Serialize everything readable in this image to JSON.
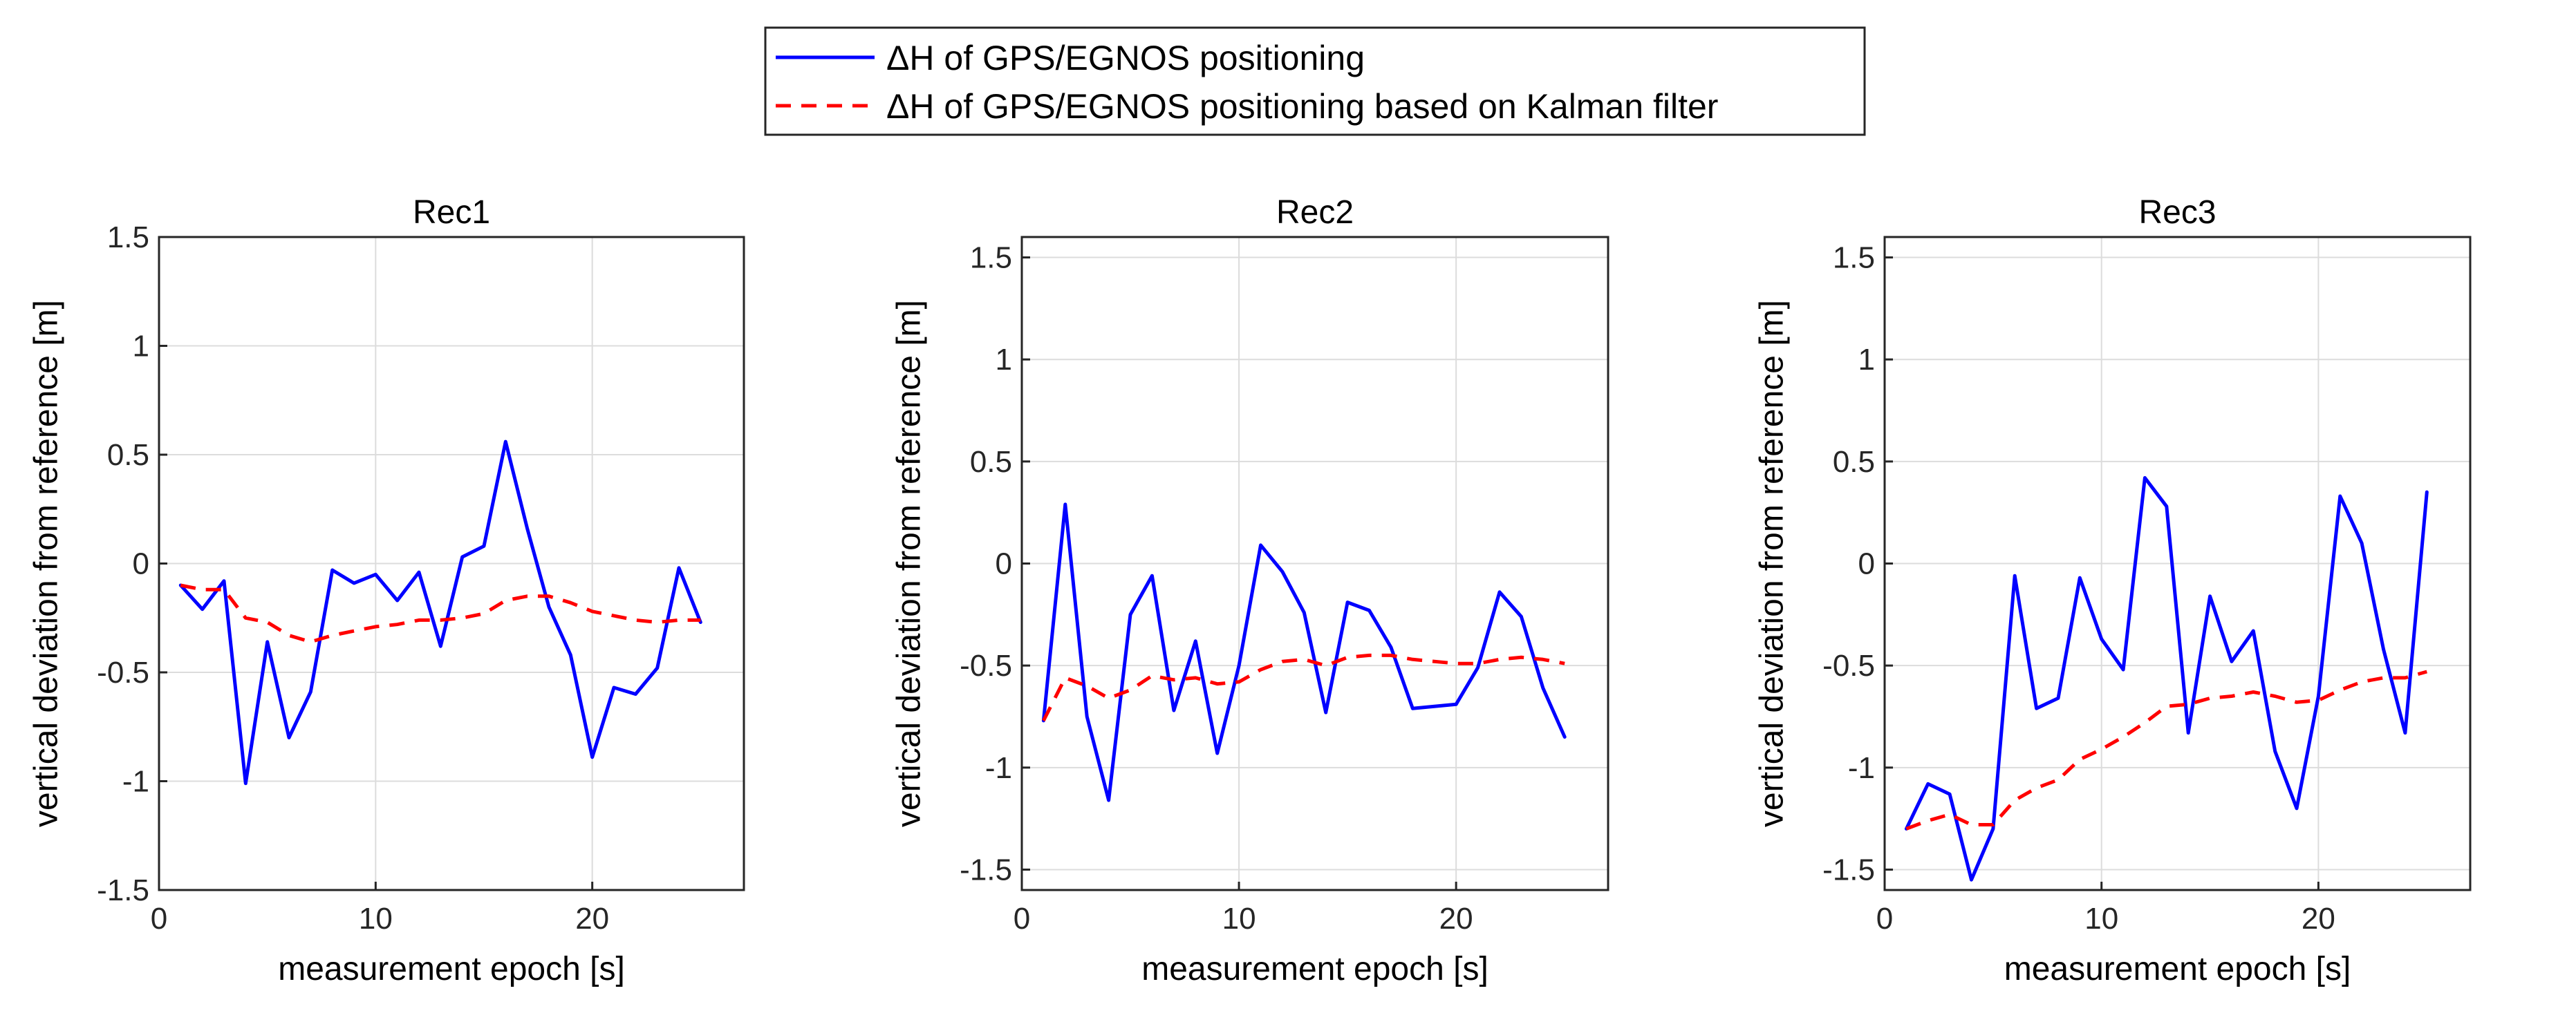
{
  "legend": {
    "entries": [
      {
        "label": "ΔH of GPS/EGNOS positioning",
        "color": "#0000ff",
        "style": "solid"
      },
      {
        "label": "ΔH of GPS/EGNOS positioning based on Kalman filter",
        "color": "#ff0000",
        "style": "dashed"
      }
    ]
  },
  "chart_data": [
    {
      "type": "line",
      "title": "Rec1",
      "xlabel": "measurement epoch [s]",
      "ylabel": "vertical deviation from reference [m]",
      "xlim": [
        0,
        27
      ],
      "ylim": [
        -1.5,
        1.5
      ],
      "xticks": [
        0,
        10,
        20
      ],
      "xtick_labels": [
        "0",
        "10",
        "20"
      ],
      "yticks": [
        -1.5,
        -1,
        -0.5,
        0,
        0.5,
        1,
        1.5
      ],
      "ytick_labels": [
        "-1.5",
        "-1",
        "-0.5",
        "0",
        "0.5",
        "1",
        "1.5"
      ],
      "grid": true,
      "x": [
        1,
        2,
        3,
        4,
        5,
        6,
        7,
        8,
        9,
        10,
        11,
        12,
        13,
        14,
        15,
        16,
        17,
        18,
        19,
        20,
        21,
        22,
        23,
        24,
        25
      ],
      "series": [
        {
          "name": "ΔH of GPS/EGNOS positioning",
          "color": "#0000ff",
          "style": "solid",
          "values": [
            -0.1,
            -0.21,
            -0.08,
            -1.01,
            -0.36,
            -0.8,
            -0.59,
            -0.03,
            -0.09,
            -0.05,
            -0.17,
            -0.04,
            -0.38,
            0.03,
            0.08,
            0.56,
            0.16,
            -0.2,
            -0.42,
            -0.89,
            -0.57,
            -0.6,
            -0.48,
            -0.02,
            -0.27
          ]
        },
        {
          "name": "ΔH of GPS/EGNOS positioning based on Kalman filter",
          "color": "#ff0000",
          "style": "dashed",
          "values": [
            -0.1,
            -0.12,
            -0.12,
            -0.25,
            -0.27,
            -0.33,
            -0.36,
            -0.33,
            -0.31,
            -0.29,
            -0.28,
            -0.26,
            -0.26,
            -0.25,
            -0.23,
            -0.17,
            -0.15,
            -0.15,
            -0.18,
            -0.22,
            -0.24,
            -0.26,
            -0.27,
            -0.26,
            -0.26
          ]
        }
      ]
    },
    {
      "type": "line",
      "title": "Rec2",
      "xlabel": "measurement epoch [s]",
      "ylabel": "vertical deviation from reference [m]",
      "xlim": [
        0,
        27
      ],
      "ylim": [
        -1.6,
        1.6
      ],
      "xticks": [
        0,
        10,
        20
      ],
      "xtick_labels": [
        "0",
        "10",
        "20"
      ],
      "yticks": [
        -1.5,
        -1,
        -0.5,
        0,
        0.5,
        1,
        1.5
      ],
      "ytick_labels": [
        "-1.5",
        "-1",
        "-0.5",
        "0",
        "0.5",
        "1",
        "1.5"
      ],
      "grid": true,
      "x": [
        1,
        2,
        3,
        4,
        5,
        6,
        7,
        8,
        9,
        10,
        11,
        12,
        13,
        14,
        15,
        16,
        17,
        18,
        19,
        20,
        21,
        22,
        23,
        24,
        25
      ],
      "series": [
        {
          "name": "ΔH of GPS/EGNOS positioning",
          "color": "#0000ff",
          "style": "solid",
          "values": [
            -0.77,
            0.29,
            -0.75,
            -1.16,
            -0.25,
            -0.06,
            -0.72,
            -0.38,
            -0.93,
            -0.5,
            0.09,
            -0.04,
            -0.24,
            -0.73,
            -0.19,
            -0.23,
            -0.41,
            -0.71,
            -0.7,
            -0.69,
            -0.51,
            -0.14,
            -0.26,
            -0.61,
            -0.85
          ]
        },
        {
          "name": "ΔH of GPS/EGNOS positioning based on Kalman filter",
          "color": "#ff0000",
          "style": "dashed",
          "values": [
            -0.77,
            -0.56,
            -0.6,
            -0.66,
            -0.62,
            -0.55,
            -0.57,
            -0.56,
            -0.59,
            -0.58,
            -0.52,
            -0.48,
            -0.47,
            -0.5,
            -0.46,
            -0.45,
            -0.45,
            -0.47,
            -0.48,
            -0.49,
            -0.49,
            -0.47,
            -0.46,
            -0.47,
            -0.49
          ]
        }
      ]
    },
    {
      "type": "line",
      "title": "Rec3",
      "xlabel": "measurement epoch [s]",
      "ylabel": "vertical deviation from reference [m]",
      "xlim": [
        0,
        27
      ],
      "ylim": [
        -1.6,
        1.6
      ],
      "xticks": [
        0,
        10,
        20
      ],
      "xtick_labels": [
        "0",
        "10",
        "20"
      ],
      "yticks": [
        -1.5,
        -1,
        -0.5,
        0,
        0.5,
        1,
        1.5
      ],
      "ytick_labels": [
        "-1.5",
        "-1",
        "-0.5",
        "0",
        "0.5",
        "1",
        "1.5"
      ],
      "grid": true,
      "x": [
        1,
        2,
        3,
        4,
        5,
        6,
        7,
        8,
        9,
        10,
        11,
        12,
        13,
        14,
        15,
        16,
        17,
        18,
        19,
        20,
        21,
        22,
        23,
        24,
        25
      ],
      "series": [
        {
          "name": "ΔH of GPS/EGNOS positioning",
          "color": "#0000ff",
          "style": "solid",
          "values": [
            -1.3,
            -1.08,
            -1.13,
            -1.55,
            -1.3,
            -0.06,
            -0.71,
            -0.66,
            -0.07,
            -0.37,
            -0.52,
            0.42,
            0.28,
            -0.83,
            -0.16,
            -0.48,
            -0.33,
            -0.92,
            -1.2,
            -0.65,
            0.33,
            0.1,
            -0.42,
            -0.83,
            0.35
          ]
        },
        {
          "name": "ΔH of GPS/EGNOS positioning based on Kalman filter",
          "color": "#ff0000",
          "style": "dashed",
          "values": [
            -1.3,
            -1.26,
            -1.23,
            -1.28,
            -1.28,
            -1.16,
            -1.1,
            -1.06,
            -0.96,
            -0.91,
            -0.85,
            -0.78,
            -0.7,
            -0.69,
            -0.66,
            -0.65,
            -0.63,
            -0.65,
            -0.68,
            -0.67,
            -0.62,
            -0.58,
            -0.56,
            -0.56,
            -0.53
          ]
        }
      ]
    }
  ]
}
